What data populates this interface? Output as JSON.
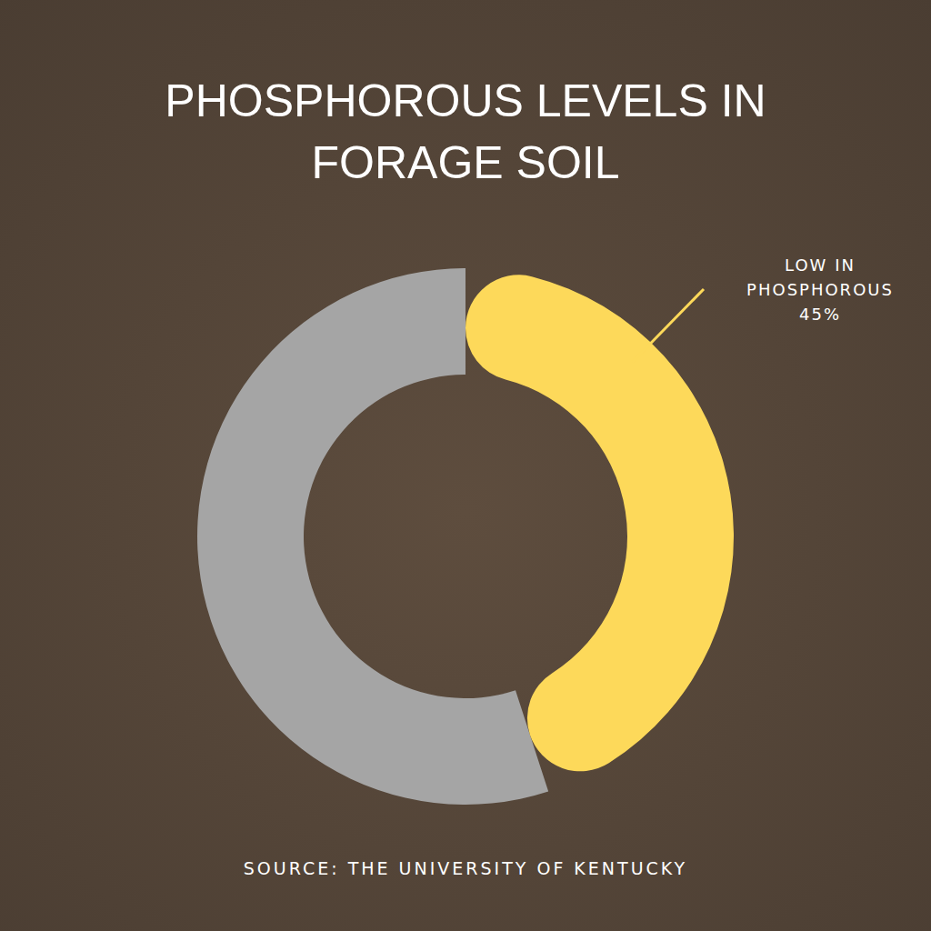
{
  "chart_data": {
    "type": "pie",
    "title": "PHOSPHOROUS LEVELS IN FORAGE SOIL",
    "source": "SOURCE: THE UNIVERSITY OF KENTUCKY",
    "categories": [
      "LOW IN PHOSPHOROUS",
      null
    ],
    "values": [
      45,
      55
    ],
    "value_labels": [
      "45%",
      null
    ],
    "colors": [
      "#fdd95a",
      "#a5a5a5"
    ],
    "data_labels": true
  }
}
